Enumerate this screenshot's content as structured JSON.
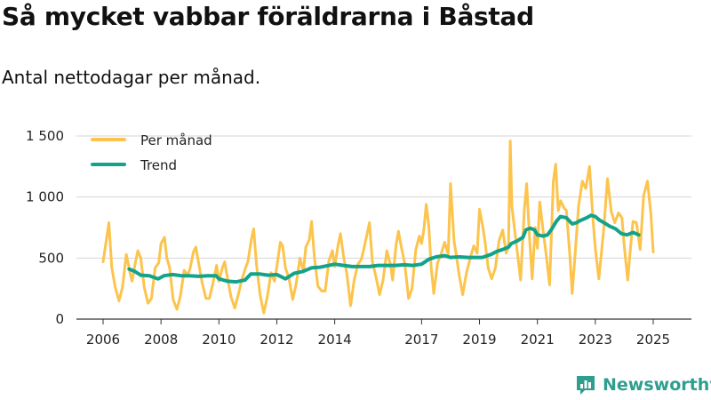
{
  "title": "Så mycket vabbar föräldrarna i Båstad",
  "subtitle": "Antal nettodagar per månad.",
  "brand": "Newsworthy",
  "colors": {
    "monthly": "#fcc44c",
    "trend": "#13a38a",
    "grid": "#d5d5d5",
    "brand": "#2e9e8f"
  },
  "chart_data": {
    "type": "line",
    "title": "Så mycket vabbar föräldrarna i Båstad",
    "subtitle": "Antal nettodagar per månad.",
    "xlabel": "",
    "ylabel": "",
    "xlim": [
      2006,
      2025.6
    ],
    "ylim": [
      0,
      1500
    ],
    "xticks": [
      {
        "value": 2006,
        "label": "2006"
      },
      {
        "value": 2008,
        "label": "2008"
      },
      {
        "value": 2010,
        "label": "2010"
      },
      {
        "value": 2012,
        "label": "2012"
      },
      {
        "value": 2014,
        "label": "2014"
      },
      {
        "value": 2017,
        "label": "2017"
      },
      {
        "value": 2019,
        "label": "2019"
      },
      {
        "value": 2021,
        "label": "2021"
      },
      {
        "value": 2023,
        "label": "2023"
      },
      {
        "value": 2025,
        "label": "2025"
      }
    ],
    "yticks": [
      {
        "value": 0,
        "label": "0"
      },
      {
        "value": 500,
        "label": "500"
      },
      {
        "value": 1000,
        "label": "1 000"
      },
      {
        "value": 1500,
        "label": "1 500"
      }
    ],
    "grid": true,
    "legend": "top-left",
    "series": [
      {
        "name": "Per månad",
        "color": "#fcc44c",
        "points": [
          [
            2006.0,
            470
          ],
          [
            2006.12,
            660
          ],
          [
            2006.2,
            790
          ],
          [
            2006.3,
            420
          ],
          [
            2006.42,
            260
          ],
          [
            2006.55,
            150
          ],
          [
            2006.67,
            260
          ],
          [
            2006.8,
            530
          ],
          [
            2006.92,
            390
          ],
          [
            2007.0,
            310
          ],
          [
            2007.12,
            470
          ],
          [
            2007.2,
            560
          ],
          [
            2007.3,
            500
          ],
          [
            2007.42,
            260
          ],
          [
            2007.55,
            130
          ],
          [
            2007.67,
            170
          ],
          [
            2007.8,
            420
          ],
          [
            2007.92,
            460
          ],
          [
            2008.0,
            620
          ],
          [
            2008.12,
            670
          ],
          [
            2008.2,
            500
          ],
          [
            2008.3,
            420
          ],
          [
            2008.42,
            160
          ],
          [
            2008.55,
            80
          ],
          [
            2008.67,
            190
          ],
          [
            2008.8,
            400
          ],
          [
            2008.92,
            360
          ],
          [
            2009.0,
            410
          ],
          [
            2009.12,
            550
          ],
          [
            2009.2,
            590
          ],
          [
            2009.3,
            460
          ],
          [
            2009.42,
            300
          ],
          [
            2009.55,
            170
          ],
          [
            2009.67,
            170
          ],
          [
            2009.8,
            300
          ],
          [
            2009.92,
            440
          ],
          [
            2010.0,
            310
          ],
          [
            2010.12,
            420
          ],
          [
            2010.2,
            470
          ],
          [
            2010.3,
            330
          ],
          [
            2010.42,
            180
          ],
          [
            2010.55,
            90
          ],
          [
            2010.67,
            200
          ],
          [
            2010.8,
            330
          ],
          [
            2010.92,
            420
          ],
          [
            2011.0,
            470
          ],
          [
            2011.12,
            650
          ],
          [
            2011.2,
            740
          ],
          [
            2011.3,
            440
          ],
          [
            2011.42,
            200
          ],
          [
            2011.55,
            50
          ],
          [
            2011.67,
            180
          ],
          [
            2011.8,
            380
          ],
          [
            2011.92,
            310
          ],
          [
            2012.0,
            430
          ],
          [
            2012.12,
            630
          ],
          [
            2012.2,
            600
          ],
          [
            2012.3,
            420
          ],
          [
            2012.42,
            330
          ],
          [
            2012.55,
            160
          ],
          [
            2012.67,
            290
          ],
          [
            2012.8,
            500
          ],
          [
            2012.92,
            390
          ],
          [
            2013.0,
            590
          ],
          [
            2013.12,
            650
          ],
          [
            2013.2,
            800
          ],
          [
            2013.3,
            500
          ],
          [
            2013.42,
            270
          ],
          [
            2013.55,
            230
          ],
          [
            2013.67,
            230
          ],
          [
            2013.8,
            480
          ],
          [
            2013.92,
            560
          ],
          [
            2014.0,
            430
          ],
          [
            2014.12,
            610
          ],
          [
            2014.2,
            700
          ],
          [
            2014.3,
            520
          ],
          [
            2014.42,
            370
          ],
          [
            2014.55,
            110
          ],
          [
            2014.67,
            320
          ],
          [
            2014.8,
            450
          ],
          [
            2014.92,
            490
          ],
          [
            2015.0,
            570
          ],
          [
            2015.12,
            700
          ],
          [
            2015.2,
            790
          ],
          [
            2015.3,
            470
          ],
          [
            2015.42,
            350
          ],
          [
            2015.55,
            200
          ],
          [
            2015.67,
            320
          ],
          [
            2015.8,
            560
          ],
          [
            2015.92,
            450
          ],
          [
            2016.0,
            320
          ],
          [
            2016.12,
            610
          ],
          [
            2016.2,
            720
          ],
          [
            2016.3,
            590
          ],
          [
            2016.42,
            450
          ],
          [
            2016.55,
            170
          ],
          [
            2016.67,
            250
          ],
          [
            2016.8,
            570
          ],
          [
            2016.92,
            680
          ],
          [
            2017.0,
            620
          ],
          [
            2017.08,
            740
          ],
          [
            2017.16,
            940
          ],
          [
            2017.25,
            760
          ],
          [
            2017.33,
            430
          ],
          [
            2017.42,
            210
          ],
          [
            2017.55,
            460
          ],
          [
            2017.67,
            530
          ],
          [
            2017.8,
            630
          ],
          [
            2017.92,
            530
          ],
          [
            2018.0,
            1110
          ],
          [
            2018.12,
            640
          ],
          [
            2018.2,
            520
          ],
          [
            2018.3,
            360
          ],
          [
            2018.42,
            200
          ],
          [
            2018.55,
            380
          ],
          [
            2018.67,
            490
          ],
          [
            2018.8,
            600
          ],
          [
            2018.92,
            540
          ],
          [
            2019.0,
            900
          ],
          [
            2019.12,
            750
          ],
          [
            2019.2,
            620
          ],
          [
            2019.3,
            420
          ],
          [
            2019.42,
            330
          ],
          [
            2019.55,
            420
          ],
          [
            2019.67,
            640
          ],
          [
            2019.8,
            730
          ],
          [
            2019.92,
            540
          ],
          [
            2020.0,
            590
          ],
          [
            2020.06,
            1460
          ],
          [
            2020.12,
            920
          ],
          [
            2020.2,
            760
          ],
          [
            2020.3,
            560
          ],
          [
            2020.42,
            320
          ],
          [
            2020.55,
            900
          ],
          [
            2020.63,
            1110
          ],
          [
            2020.72,
            690
          ],
          [
            2020.82,
            330
          ],
          [
            2020.92,
            750
          ],
          [
            2021.0,
            580
          ],
          [
            2021.08,
            960
          ],
          [
            2021.2,
            720
          ],
          [
            2021.3,
            530
          ],
          [
            2021.42,
            280
          ],
          [
            2021.55,
            1130
          ],
          [
            2021.63,
            1270
          ],
          [
            2021.72,
            890
          ],
          [
            2021.8,
            970
          ],
          [
            2021.92,
            910
          ],
          [
            2022.0,
            890
          ],
          [
            2022.12,
            520
          ],
          [
            2022.2,
            210
          ],
          [
            2022.3,
            520
          ],
          [
            2022.42,
            920
          ],
          [
            2022.55,
            1130
          ],
          [
            2022.67,
            1070
          ],
          [
            2022.8,
            1250
          ],
          [
            2022.92,
            820
          ],
          [
            2023.0,
            580
          ],
          [
            2023.12,
            330
          ],
          [
            2023.2,
            520
          ],
          [
            2023.3,
            760
          ],
          [
            2023.42,
            1150
          ],
          [
            2023.55,
            880
          ],
          [
            2023.67,
            790
          ],
          [
            2023.8,
            870
          ],
          [
            2023.92,
            830
          ],
          [
            2024.0,
            600
          ],
          [
            2024.12,
            320
          ],
          [
            2024.2,
            540
          ],
          [
            2024.3,
            800
          ],
          [
            2024.42,
            790
          ],
          [
            2024.55,
            570
          ],
          [
            2024.67,
            1010
          ],
          [
            2024.8,
            1130
          ],
          [
            2024.92,
            860
          ],
          [
            2025.0,
            550
          ]
        ]
      },
      {
        "name": "Trend",
        "color": "#13a38a",
        "points": [
          [
            2006.9,
            410
          ],
          [
            2007.1,
            390
          ],
          [
            2007.3,
            360
          ],
          [
            2007.6,
            355
          ],
          [
            2007.9,
            330
          ],
          [
            2008.1,
            355
          ],
          [
            2008.4,
            365
          ],
          [
            2008.7,
            355
          ],
          [
            2009.0,
            355
          ],
          [
            2009.3,
            350
          ],
          [
            2009.6,
            355
          ],
          [
            2009.9,
            355
          ],
          [
            2010.0,
            330
          ],
          [
            2010.3,
            310
          ],
          [
            2010.6,
            305
          ],
          [
            2010.9,
            320
          ],
          [
            2011.1,
            370
          ],
          [
            2011.4,
            370
          ],
          [
            2011.7,
            360
          ],
          [
            2012.0,
            365
          ],
          [
            2012.3,
            330
          ],
          [
            2012.6,
            375
          ],
          [
            2012.9,
            390
          ],
          [
            2013.2,
            420
          ],
          [
            2013.5,
            425
          ],
          [
            2013.8,
            440
          ],
          [
            2014.0,
            450
          ],
          [
            2014.3,
            440
          ],
          [
            2014.6,
            430
          ],
          [
            2014.9,
            430
          ],
          [
            2015.2,
            430
          ],
          [
            2015.5,
            440
          ],
          [
            2015.8,
            440
          ],
          [
            2016.1,
            440
          ],
          [
            2016.4,
            445
          ],
          [
            2016.7,
            440
          ],
          [
            2017.0,
            450
          ],
          [
            2017.25,
            490
          ],
          [
            2017.5,
            510
          ],
          [
            2017.8,
            520
          ],
          [
            2018.0,
            505
          ],
          [
            2018.3,
            510
          ],
          [
            2018.6,
            505
          ],
          [
            2018.9,
            505
          ],
          [
            2019.1,
            505
          ],
          [
            2019.4,
            530
          ],
          [
            2019.6,
            555
          ],
          [
            2019.8,
            570
          ],
          [
            2020.0,
            590
          ],
          [
            2020.1,
            620
          ],
          [
            2020.3,
            640
          ],
          [
            2020.5,
            670
          ],
          [
            2020.6,
            730
          ],
          [
            2020.75,
            745
          ],
          [
            2020.9,
            730
          ],
          [
            2021.0,
            690
          ],
          [
            2021.2,
            680
          ],
          [
            2021.35,
            690
          ],
          [
            2021.5,
            740
          ],
          [
            2021.65,
            800
          ],
          [
            2021.8,
            840
          ],
          [
            2022.0,
            830
          ],
          [
            2022.2,
            780
          ],
          [
            2022.35,
            790
          ],
          [
            2022.5,
            810
          ],
          [
            2022.7,
            830
          ],
          [
            2022.85,
            850
          ],
          [
            2023.0,
            840
          ],
          [
            2023.15,
            810
          ],
          [
            2023.3,
            790
          ],
          [
            2023.5,
            760
          ],
          [
            2023.7,
            740
          ],
          [
            2023.9,
            700
          ],
          [
            2024.1,
            690
          ],
          [
            2024.3,
            710
          ],
          [
            2024.5,
            690
          ]
        ]
      }
    ]
  }
}
